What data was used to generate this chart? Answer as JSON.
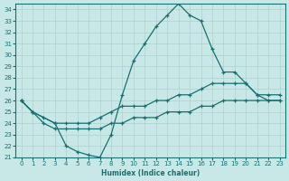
{
  "xlabel": "Humidex (Indice chaleur)",
  "bg_color": "#c8e8e8",
  "line_color": "#1a7070",
  "xlim": [
    -0.5,
    23.5
  ],
  "ylim": [
    21,
    34.5
  ],
  "yticks": [
    21,
    22,
    23,
    24,
    25,
    26,
    27,
    28,
    29,
    30,
    31,
    32,
    33,
    34
  ],
  "xticks": [
    0,
    1,
    2,
    3,
    4,
    5,
    6,
    7,
    8,
    9,
    10,
    11,
    12,
    13,
    14,
    15,
    16,
    17,
    18,
    19,
    20,
    21,
    22,
    23
  ],
  "line_main_x": [
    0,
    1,
    3,
    4,
    5,
    6,
    7,
    8,
    9,
    10,
    11,
    12,
    13,
    14,
    15,
    16,
    17,
    18,
    19,
    20,
    21,
    22,
    23
  ],
  "line_main_y": [
    26,
    25,
    24,
    22,
    21.5,
    21.2,
    21,
    23,
    26.5,
    29.5,
    31,
    32.5,
    33.5,
    34.5,
    33.5,
    33,
    30.5,
    28.5,
    28.5,
    27.5,
    26.5,
    26,
    26
  ],
  "line_upper_x": [
    0,
    1,
    2,
    3,
    4,
    5,
    6,
    7,
    8,
    9,
    10,
    11,
    12,
    13,
    14,
    15,
    16,
    17,
    18,
    19,
    20,
    21,
    22,
    23
  ],
  "line_upper_y": [
    26,
    25,
    24.5,
    24,
    24,
    24,
    24,
    24.5,
    25,
    25.5,
    25.5,
    25.5,
    26,
    26,
    26.5,
    26.5,
    27,
    27.5,
    27.5,
    27.5,
    27.5,
    26.5,
    26.5,
    26.5
  ],
  "line_lower_x": [
    0,
    1,
    2,
    3,
    4,
    5,
    6,
    7,
    8,
    9,
    10,
    11,
    12,
    13,
    14,
    15,
    16,
    17,
    18,
    19,
    20,
    21,
    22,
    23
  ],
  "line_lower_y": [
    26,
    25,
    24,
    23.5,
    23.5,
    23.5,
    23.5,
    23.5,
    24,
    24,
    24.5,
    24.5,
    24.5,
    25,
    25,
    25,
    25.5,
    25.5,
    26,
    26,
    26,
    26,
    26,
    26
  ]
}
